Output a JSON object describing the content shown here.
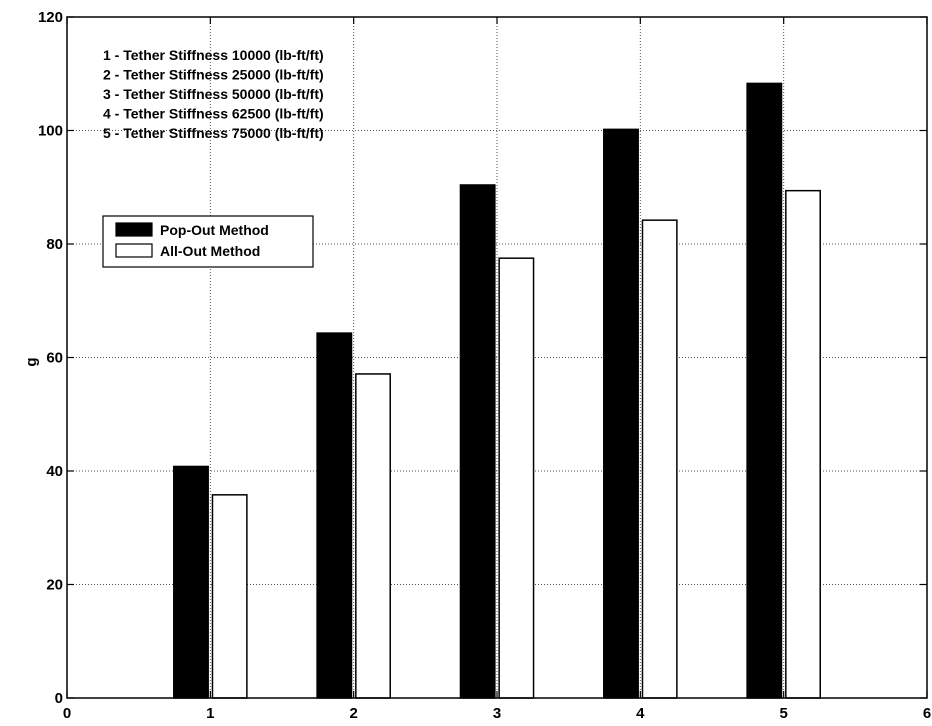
{
  "chart_data": {
    "type": "bar",
    "ylabel": "g",
    "xlim": [
      0,
      6
    ],
    "ylim": [
      0,
      120
    ],
    "x_ticks": [
      "0",
      "1",
      "2",
      "3",
      "4",
      "5",
      "6"
    ],
    "y_ticks": [
      "0",
      "20",
      "40",
      "60",
      "80",
      "100",
      "120"
    ],
    "categories": [
      "1",
      "2",
      "3",
      "4",
      "5"
    ],
    "grid": true,
    "series": [
      {
        "name": "Pop-Out Method",
        "color": "#000000",
        "values": [
          40.8,
          64.3,
          90.4,
          100.2,
          108.3
        ]
      },
      {
        "name": "All-Out Method",
        "color": "#ffffff",
        "values": [
          35.8,
          57.1,
          77.5,
          84.2,
          89.4
        ]
      }
    ],
    "annotations": [
      "1 - Tether Stiffness 10000 (lb-ft/ft)",
      "2 - Tether Stiffness 25000 (lb-ft/ft)",
      "3 - Tether Stiffness 50000 (lb-ft/ft)",
      "4 - Tether Stiffness 62500 (lb-ft/ft)",
      "5 - Tether Stiffness 75000 (lb-ft/ft)"
    ],
    "legend_position": "left"
  }
}
